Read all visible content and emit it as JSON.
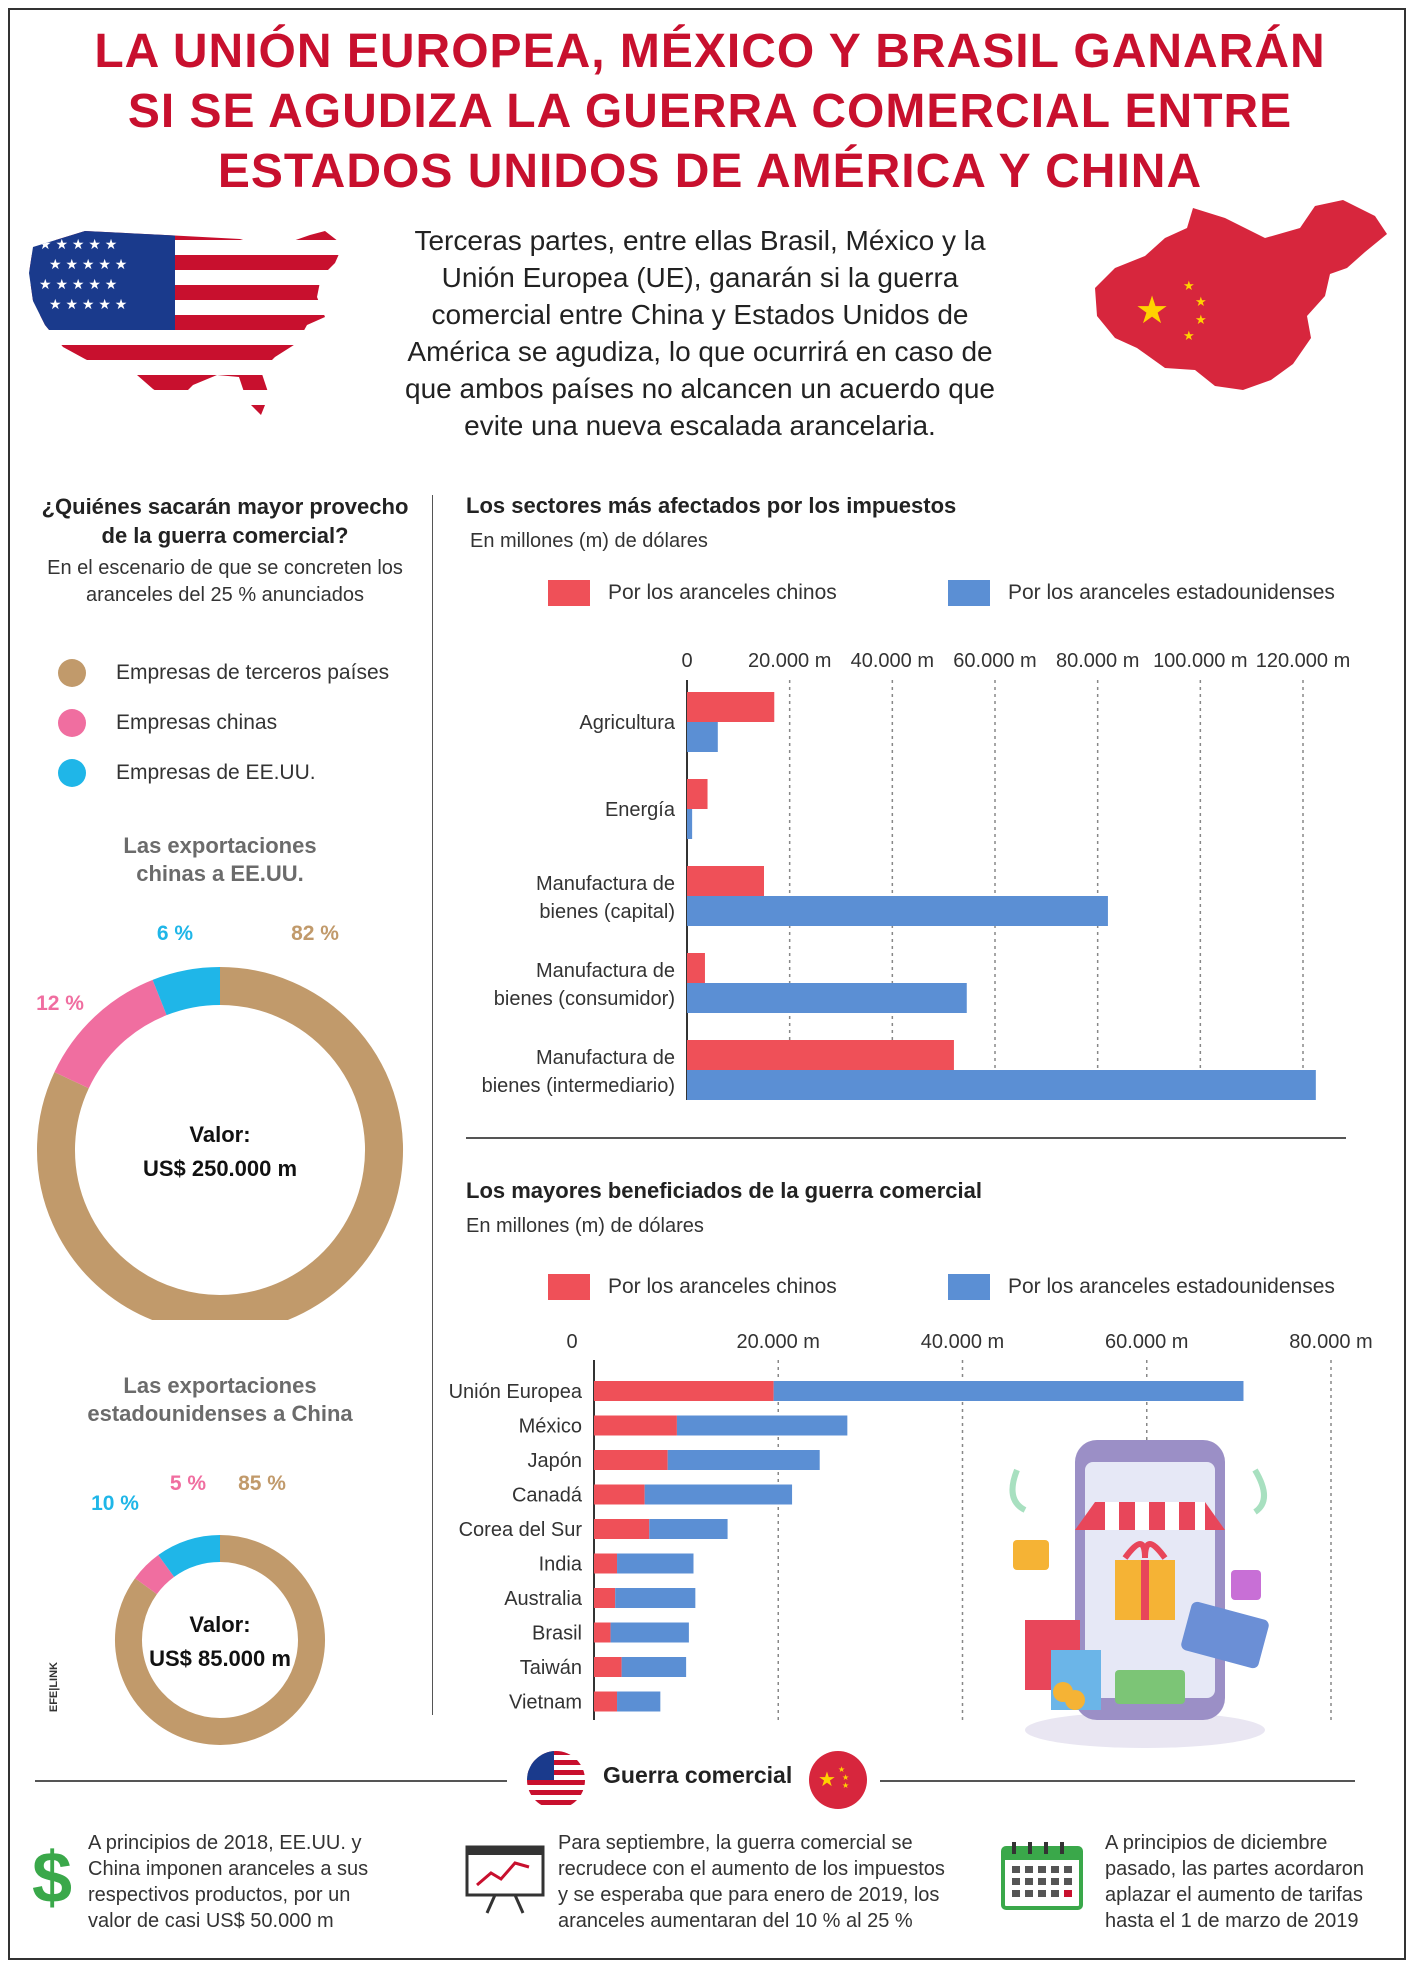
{
  "title_lines": [
    "LA UNIÓN EUROPEA, MÉXICO Y BRASIL GANARÁN",
    "SI SE AGUDIZA LA GUERRA COMERCIAL ENTRE",
    "ESTADOS UNIDOS DE AMÉRICA Y CHINA"
  ],
  "intro_lines": [
    "Terceras partes, entre ellas Brasil, México y la",
    "Unión Europea (UE), ganarán si la guerra",
    "comercial entre China y Estados Unidos de",
    "América se agudiza, lo que ocurrirá en caso de",
    "que ambos países no alcancen un acuerdo que",
    "evite una nueva escalada arancelaria."
  ],
  "left": {
    "heading_lines": [
      "¿Quiénes sacarán mayor provecho",
      "de la guerra comercial?"
    ],
    "sub_lines": [
      "En el escenario de que se concreten los",
      "aranceles del 25 % anunciados"
    ],
    "legend": [
      {
        "label": "Empresas de terceros países",
        "color": "#c19a6b"
      },
      {
        "label": "Empresas chinas",
        "color": "#f06ea0"
      },
      {
        "label": "Empresas de EE.UU.",
        "color": "#1fb6e8"
      }
    ]
  },
  "colors": {
    "chinese": "#ef5058",
    "us": "#5b8fd4",
    "third": "#c19a6b",
    "china_co": "#f06ea0",
    "us_co": "#1fb6e8",
    "title_red": "#c8102e"
  },
  "chart_data": [
    {
      "type": "pie",
      "title": "Las exportaciones chinas a EE.UU.",
      "title_lines": [
        "Las exportaciones",
        "chinas a EE.UU."
      ],
      "center_label": "Valor:",
      "center_value": "US$ 250.000 m",
      "slices": [
        {
          "label": "Empresas de terceros países",
          "value": 82,
          "text": "82 %"
        },
        {
          "label": "Empresas chinas",
          "value": 12,
          "text": "12 %"
        },
        {
          "label": "Empresas de EE.UU.",
          "value": 6,
          "text": "6 %"
        }
      ]
    },
    {
      "type": "pie",
      "title": "Las exportaciones estadounidenses a China",
      "title_lines": [
        "Las exportaciones",
        "estadounidenses a China"
      ],
      "center_label": "Valor:",
      "center_value": "US$ 85.000 m",
      "slices": [
        {
          "label": "Empresas de terceros países",
          "value": 85,
          "text": "85 %"
        },
        {
          "label": "Empresas chinas",
          "value": 5,
          "text": "5 %"
        },
        {
          "label": "Empresas de EE.UU.",
          "value": 10,
          "text": "10 %"
        }
      ]
    },
    {
      "type": "bar",
      "orientation": "horizontal",
      "title": "Los sectores más afectados por los impuestos",
      "subtitle": "En millones (m) de dólares",
      "categories": [
        [
          "Agricultura"
        ],
        [
          "Energía"
        ],
        [
          "Manufactura de",
          "bienes (capital)"
        ],
        [
          "Manufactura de",
          "bienes (consumidor)"
        ],
        [
          "Manufactura de",
          "bienes (intermediario)"
        ]
      ],
      "xlim": [
        0,
        120000
      ],
      "ticks": [
        0,
        20000,
        40000,
        60000,
        80000,
        100000,
        120000
      ],
      "tick_labels": [
        "0",
        "20.000 m",
        "40.000 m",
        "60.000 m",
        "80.000 m",
        "100.000 m",
        "120.000 m"
      ],
      "grid": true,
      "legend_position": "top",
      "series": [
        {
          "name": "Por los aranceles chinos",
          "values": [
            17000,
            4000,
            15000,
            3500,
            52000
          ]
        },
        {
          "name": "Por los aranceles estadounidenses",
          "values": [
            6000,
            1000,
            82000,
            54500,
            122500
          ]
        }
      ]
    },
    {
      "type": "bar",
      "orientation": "horizontal",
      "stacked": true,
      "title": "Los mayores beneficiados de la guerra comercial",
      "subtitle": "En millones (m) de dólares",
      "categories": [
        "Unión Europea",
        "México",
        "Japón",
        "Canadá",
        "Corea del Sur",
        "India",
        "Australia",
        "Brasil",
        "Taiwán",
        "Vietnam"
      ],
      "xlim": [
        0,
        80000
      ],
      "ticks": [
        0,
        20000,
        40000,
        60000,
        80000
      ],
      "tick_labels": [
        "0",
        "20.000 m",
        "40.000 m",
        "60.000 m",
        "80.000 m"
      ],
      "grid": true,
      "legend_position": "top",
      "series": [
        {
          "name": "Por los aranceles chinos",
          "values": [
            19500,
            9000,
            8000,
            5500,
            6000,
            2500,
            2300,
            1800,
            3000,
            2500
          ]
        },
        {
          "name": "Por los aranceles estadounidenses",
          "values": [
            51000,
            18500,
            16500,
            16000,
            8500,
            8300,
            8700,
            8500,
            7000,
            4700
          ]
        }
      ]
    }
  ],
  "footer": {
    "title": "Guerra comercial",
    "columns": [
      {
        "icon": "dollar-icon",
        "lines": [
          "A principios de 2018, EE.UU. y",
          "China imponen aranceles a sus",
          "respectivos productos, por un",
          "valor de casi US$ 50.000 m"
        ]
      },
      {
        "icon": "chart-board-icon",
        "lines": [
          "Para septiembre, la guerra comercial se",
          "recrudece con el aumento de los impuestos",
          "y se esperaba que para enero de 2019, los",
          "aranceles aumentaran del 10 % al 25 %"
        ]
      },
      {
        "icon": "calendar-icon",
        "lines": [
          "A principios de diciembre",
          "pasado, las partes acordaron",
          "aplazar el aumento de tarifas",
          "hasta el 1 de marzo de 2019"
        ]
      }
    ]
  },
  "credit": "EFE|LINK"
}
